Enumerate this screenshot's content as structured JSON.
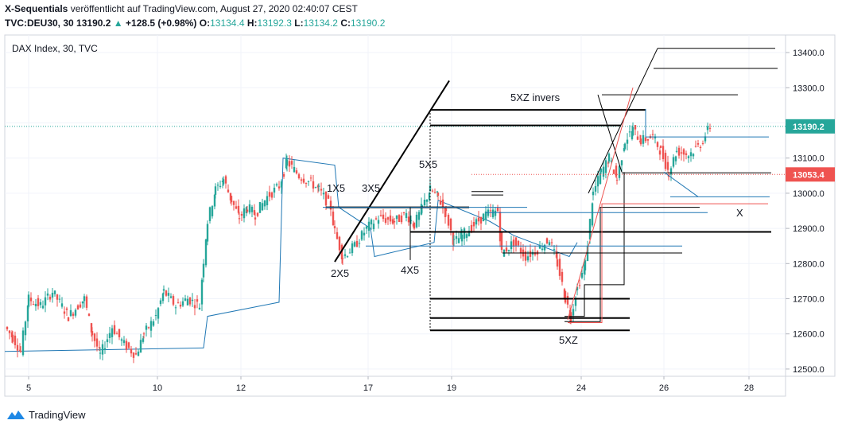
{
  "header": {
    "publisher": "X-Sequentials",
    "published_text": "veröffentlicht auf TradingView.com, August 27, 2020 02:40:07 CEST",
    "symbol": "TVC:DEU30, 30",
    "last": "13190.2",
    "change_arrow": "▲",
    "change": "+128.5 (+0.98%)",
    "o_label": "O:",
    "o_value": "13134.4",
    "h_label": "H:",
    "h_value": "13192.3",
    "l_label": "L:",
    "l_value": "13134.2",
    "c_label": "C:",
    "c_value": "13190.2"
  },
  "chart_data": {
    "type": "candlestick",
    "title": "DAX Index, 30, TVC",
    "x_tick_labels": [
      "5",
      "10",
      "12",
      "17",
      "19",
      "24",
      "26",
      "28"
    ],
    "y_ticks": [
      12500,
      12600,
      12700,
      12800,
      12900,
      13000,
      13100,
      13200,
      13300,
      13400
    ],
    "y_tick_labels": [
      "12500.0",
      "12600.0",
      "12700.0",
      "12800.0",
      "12900.0",
      "13000.0",
      "13100.0",
      "13200.0",
      "13300.0",
      "13400.0"
    ],
    "ylim": [
      12470,
      13450
    ],
    "price_labels": [
      {
        "value": 13190.2,
        "text": "13190.2",
        "color": "#26a69a"
      },
      {
        "value": 13053.4,
        "text": "13053.4",
        "color": "#ef5350"
      }
    ],
    "annotations": [
      "1X5",
      "3X5",
      "2X5",
      "4X5",
      "5X5",
      "5XZ invers",
      "5XZ",
      "X"
    ],
    "colors": {
      "up": "#26a69a",
      "down": "#ef5350",
      "line": "#1f77b4"
    },
    "price_path": [
      [
        0,
        12620
      ],
      [
        10,
        12590
      ],
      [
        20,
        12550
      ],
      [
        30,
        12700
      ],
      [
        45,
        12680
      ],
      [
        60,
        12720
      ],
      [
        80,
        12650
      ],
      [
        100,
        12700
      ],
      [
        110,
        12600
      ],
      [
        120,
        12540
      ],
      [
        135,
        12620
      ],
      [
        150,
        12570
      ],
      [
        165,
        12540
      ],
      [
        175,
        12600
      ],
      [
        190,
        12650
      ],
      [
        200,
        12720
      ],
      [
        215,
        12680
      ],
      [
        230,
        12700
      ],
      [
        245,
        12680
      ],
      [
        250,
        12810
      ],
      [
        255,
        12920
      ],
      [
        265,
        13010
      ],
      [
        275,
        13040
      ],
      [
        285,
        12980
      ],
      [
        295,
        12930
      ],
      [
        305,
        12960
      ],
      [
        315,
        12940
      ],
      [
        330,
        12990
      ],
      [
        345,
        13020
      ],
      [
        355,
        13090
      ],
      [
        370,
        13050
      ],
      [
        385,
        13030
      ],
      [
        395,
        13010
      ],
      [
        410,
        12960
      ],
      [
        415,
        12890
      ],
      [
        425,
        12820
      ],
      [
        440,
        12850
      ],
      [
        455,
        12900
      ],
      [
        470,
        12930
      ],
      [
        490,
        12920
      ],
      [
        505,
        12940
      ],
      [
        515,
        12910
      ],
      [
        525,
        12960
      ],
      [
        535,
        13010
      ],
      [
        545,
        12990
      ],
      [
        555,
        12940
      ],
      [
        565,
        12860
      ],
      [
        575,
        12880
      ],
      [
        590,
        12910
      ],
      [
        605,
        12940
      ],
      [
        620,
        12950
      ],
      [
        625,
        12830
      ],
      [
        640,
        12860
      ],
      [
        655,
        12820
      ],
      [
        670,
        12840
      ],
      [
        685,
        12870
      ],
      [
        695,
        12800
      ],
      [
        705,
        12700
      ],
      [
        712,
        12650
      ],
      [
        720,
        12730
      ],
      [
        730,
        12800
      ],
      [
        740,
        13000
      ],
      [
        750,
        13060
      ],
      [
        760,
        13100
      ],
      [
        770,
        13040
      ],
      [
        780,
        13150
      ],
      [
        790,
        13180
      ],
      [
        800,
        13150
      ],
      [
        815,
        13160
      ],
      [
        825,
        13120
      ],
      [
        835,
        13060
      ],
      [
        845,
        13120
      ],
      [
        860,
        13110
      ],
      [
        875,
        13140
      ],
      [
        887,
        13190
      ]
    ],
    "line_series": [
      [
        0,
        12550
      ],
      [
        250,
        12560
      ],
      [
        255,
        12650
      ],
      [
        345,
        12690
      ],
      [
        350,
        13100
      ],
      [
        415,
        13080
      ],
      [
        420,
        12960
      ],
      [
        460,
        12900
      ],
      [
        465,
        12820
      ],
      [
        540,
        12860
      ],
      [
        545,
        12980
      ],
      [
        610,
        12920
      ],
      [
        640,
        12880
      ],
      [
        710,
        12820
      ],
      [
        720,
        12860
      ]
    ]
  },
  "footer": {
    "brand": "TradingView"
  }
}
